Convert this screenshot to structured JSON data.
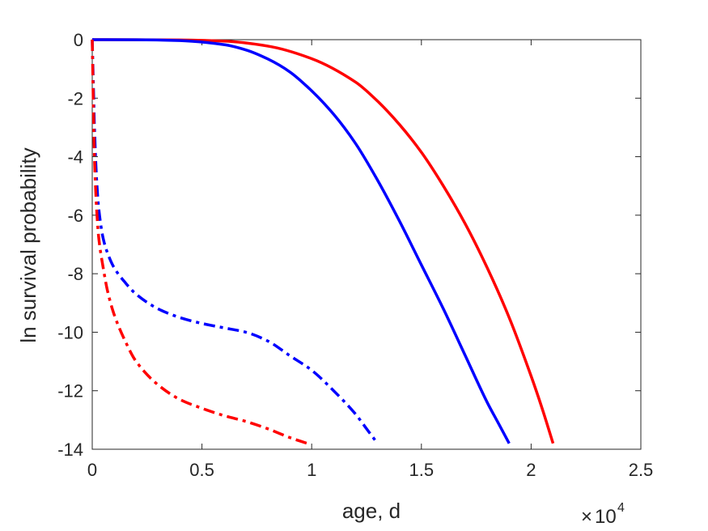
{
  "chart_data": {
    "type": "line",
    "xlabel": "age, d",
    "ylabel": "ln survival probability",
    "x_multiplier": {
      "base": "10",
      "exponent": "4",
      "sign": "×"
    },
    "xlim": [
      0,
      25000
    ],
    "ylim": [
      -14,
      0
    ],
    "xticks": [
      0,
      5000,
      10000,
      15000,
      20000,
      25000
    ],
    "xtick_labels": [
      "0",
      "0.5",
      "1",
      "1.5",
      "2",
      "2.5"
    ],
    "yticks": [
      0,
      -2,
      -4,
      -6,
      -8,
      -10,
      -12,
      -14
    ],
    "ytick_labels": [
      "0",
      "-2",
      "-4",
      "-6",
      "-8",
      "-10",
      "-12",
      "-14"
    ],
    "grid": false,
    "series": [
      {
        "color": "#ff0000",
        "style": "solid",
        "x": [
          0,
          2000,
          4000,
          6000,
          8000,
          10000,
          12000,
          13000,
          14000,
          15000,
          16000,
          17000,
          18000,
          19000,
          20000,
          20500,
          21000
        ],
        "y": [
          0,
          -0.002,
          -0.01,
          -0.05,
          -0.22,
          -0.65,
          -1.45,
          -2.1,
          -2.9,
          -3.85,
          -5.0,
          -6.3,
          -7.8,
          -9.5,
          -11.5,
          -12.6,
          -13.8
        ]
      },
      {
        "color": "#0000ff",
        "style": "solid",
        "x": [
          0,
          2000,
          4000,
          6000,
          7000,
          8000,
          9000,
          10000,
          11000,
          12000,
          13000,
          14000,
          15000,
          16000,
          17000,
          18000,
          18500,
          19000
        ],
        "y": [
          0,
          -0.002,
          -0.03,
          -0.17,
          -0.35,
          -0.66,
          -1.1,
          -1.75,
          -2.55,
          -3.55,
          -4.8,
          -6.2,
          -7.7,
          -9.2,
          -10.8,
          -12.4,
          -13.1,
          -13.8
        ]
      },
      {
        "color": "#0000ff",
        "style": "dashdot",
        "x": [
          0,
          50,
          100,
          200,
          300,
          500,
          700,
          1000,
          1500,
          2000,
          3000,
          4000,
          5000,
          6000,
          7000,
          8000,
          9000,
          10000,
          11000,
          12000,
          12500,
          13000
        ],
        "y": [
          0,
          -1.5,
          -3.0,
          -4.8,
          -5.8,
          -6.8,
          -7.3,
          -7.8,
          -8.3,
          -8.7,
          -9.2,
          -9.5,
          -9.7,
          -9.85,
          -10.0,
          -10.3,
          -10.8,
          -11.3,
          -12.0,
          -12.8,
          -13.3,
          -13.8
        ]
      },
      {
        "color": "#ff0000",
        "style": "dashdot",
        "x": [
          0,
          50,
          100,
          200,
          300,
          500,
          700,
          1000,
          1500,
          2000,
          3000,
          4000,
          5000,
          6000,
          7000,
          8000,
          9000,
          9800
        ],
        "y": [
          0,
          -2.2,
          -4.0,
          -5.8,
          -6.8,
          -7.8,
          -8.6,
          -9.4,
          -10.3,
          -11.0,
          -11.8,
          -12.3,
          -12.6,
          -12.85,
          -13.05,
          -13.3,
          -13.6,
          -13.8
        ]
      }
    ]
  }
}
